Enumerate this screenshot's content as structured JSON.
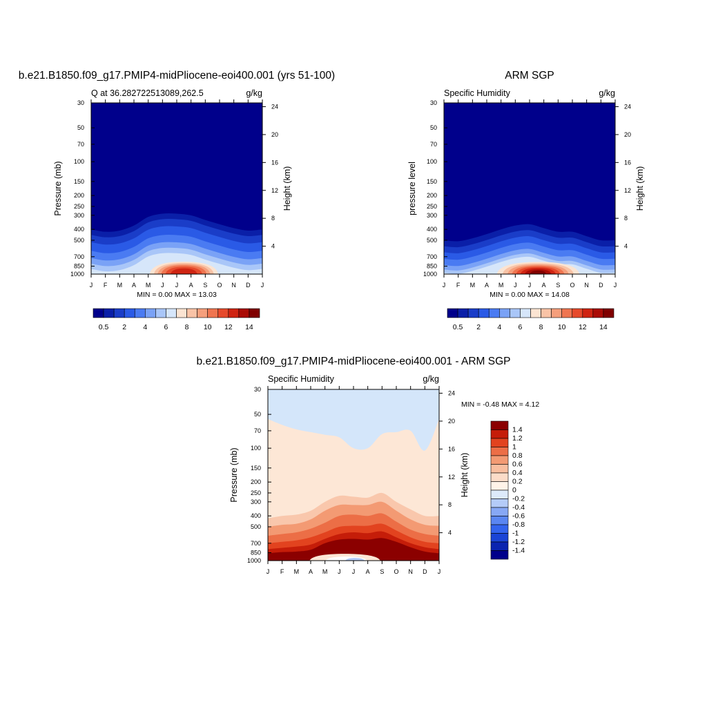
{
  "months": [
    "J",
    "F",
    "M",
    "A",
    "M",
    "J",
    "J",
    "A",
    "S",
    "O",
    "N",
    "D",
    "J"
  ],
  "pressure_ticks": [
    30,
    50,
    70,
    100,
    150,
    200,
    250,
    300,
    400,
    500,
    700,
    850,
    1000
  ],
  "height_ticks": [
    4,
    8,
    12,
    16,
    20,
    24
  ],
  "colors": {
    "abs_palette": [
      "#00008b",
      "#0a1fa8",
      "#1a3dc8",
      "#2a5ae6",
      "#4a7bf2",
      "#7aa2f6",
      "#a9c6f8",
      "#d6e6fa",
      "#fbe4d2",
      "#f9c3a6",
      "#f59f7c",
      "#ef7550",
      "#e64a2c",
      "#cf2412",
      "#aa0c06",
      "#800000"
    ],
    "diff_palette": [
      "#00008b",
      "#0a24b0",
      "#1a44d6",
      "#3364ee",
      "#5a86f2",
      "#87a8f5",
      "#b4cbf8",
      "#ddeafb",
      "#fff3e8",
      "#fcdcc8",
      "#f9be9f",
      "#f39a73",
      "#ec6e46",
      "#e2431f",
      "#c51d09",
      "#8b0000"
    ]
  },
  "panel1": {
    "title": "b.e21.B1850.f09_g17.PMIP4-midPliocene-eoi400.001 (yrs 51-100)",
    "left_string": "Q at 36.282722513089,262.5",
    "right_string": "g/kg",
    "ylabel": "Pressure (mb)",
    "ylabel_right": "Height (km)",
    "stats": "MIN =   0.00 MAX =  13.03"
  },
  "panel2": {
    "title": "ARM SGP",
    "left_string": "Specific Humidity",
    "right_string": "g/kg",
    "ylabel": "pressure level",
    "ylabel_right": "Height (km)",
    "stats": "MIN =   0.00 MAX =  14.08"
  },
  "panel3": {
    "title": "b.e21.B1850.f09_g17.PMIP4-midPliocene-eoi400.001 - ARM SGP",
    "left_string": "Specific Humidity",
    "right_string": "g/kg",
    "ylabel": "Pressure (mb)",
    "ylabel_right": "Height (km)",
    "stats": "MIN =  -0.48 MAX =   4.12"
  },
  "colorbar_abs_labels": [
    "0.5",
    "2",
    "4",
    "6",
    "8",
    "10",
    "12",
    "14"
  ],
  "colorbar_diff_labels": [
    "1.4",
    "1.2",
    "1",
    "0.8",
    "0.6",
    "0.4",
    "0.2",
    "0",
    "-0.2",
    "-0.4",
    "-0.6",
    "-0.8",
    "-1",
    "-1.2",
    "-1.4"
  ],
  "chart_data": [
    {
      "type": "heatmap",
      "title": "b.e21.B1850.f09_g17.PMIP4-midPliocene-eoi400.001 (yrs 51-100)",
      "subtitle": "Q at 36.282722513089,262.5",
      "units": "g/kg",
      "xlabel": "",
      "x": [
        "J",
        "F",
        "M",
        "A",
        "M",
        "J",
        "J",
        "A",
        "S",
        "O",
        "N",
        "D",
        "J"
      ],
      "ylabel": "Pressure (mb)",
      "ylim": [
        1000,
        30
      ],
      "log_y": true,
      "min": 0.0,
      "max": 13.03
    },
    {
      "type": "heatmap",
      "title": "ARM SGP",
      "subtitle": "Specific Humidity",
      "units": "g/kg",
      "xlabel": "",
      "x": [
        "J",
        "F",
        "M",
        "A",
        "M",
        "J",
        "J",
        "A",
        "S",
        "O",
        "N",
        "D",
        "J"
      ],
      "ylabel": "pressure level",
      "ylim": [
        1000,
        30
      ],
      "log_y": true,
      "min": 0.0,
      "max": 14.08
    },
    {
      "type": "heatmap",
      "title": "b.e21.B1850.f09_g17.PMIP4-midPliocene-eoi400.001 - ARM SGP",
      "subtitle": "Specific Humidity",
      "units": "g/kg",
      "xlabel": "",
      "x": [
        "J",
        "F",
        "M",
        "A",
        "M",
        "J",
        "J",
        "A",
        "S",
        "O",
        "N",
        "D",
        "J"
      ],
      "ylabel": "Pressure (mb)",
      "ylim": [
        1000,
        30
      ],
      "log_y": true,
      "min": -0.48,
      "max": 4.12
    }
  ]
}
